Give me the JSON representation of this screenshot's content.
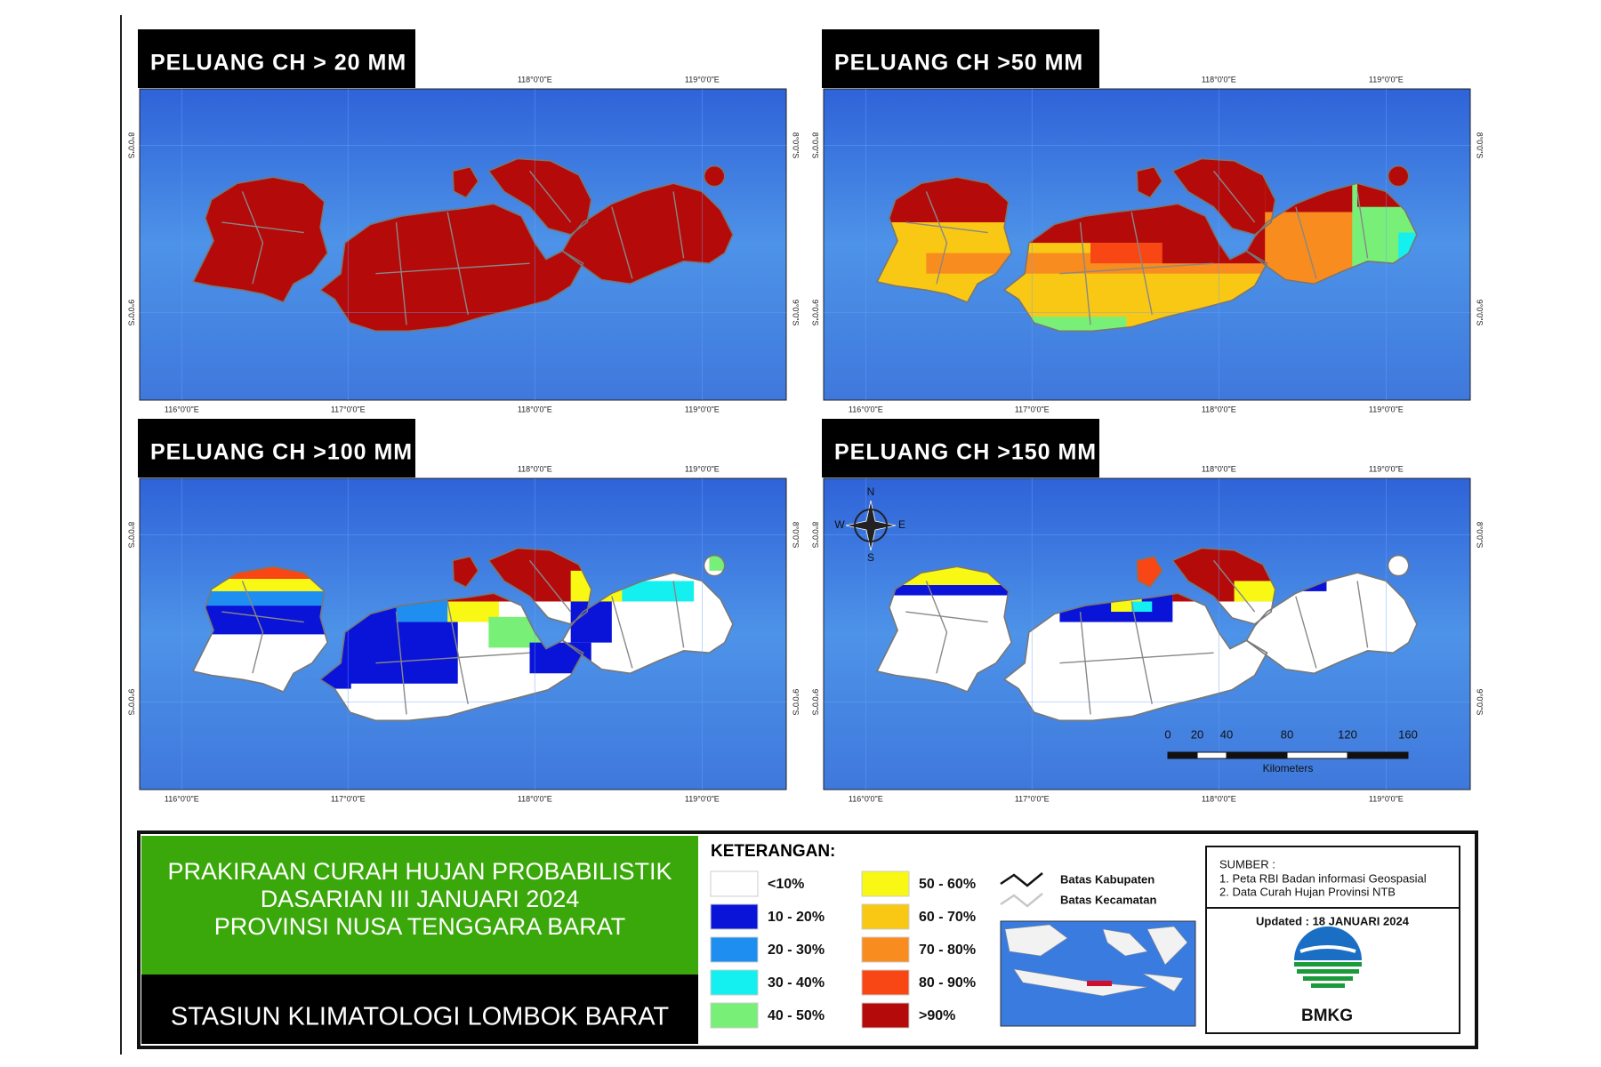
{
  "panels": [
    {
      "title": "PELUANG CH > 20 MM"
    },
    {
      "title": "PELUANG CH >50 MM"
    },
    {
      "title": "PELUANG CH >100 MM"
    },
    {
      "title": "PELUANG CH >150 MM"
    }
  ],
  "axis_labels": {
    "lon": [
      "116°0'0\"E",
      "117°0'0\"E",
      "118°0'0\"E",
      "119°0'0\"E"
    ],
    "lat": [
      "8°0'0\"S",
      "9°0'0\"S"
    ]
  },
  "compass": {
    "n": "N",
    "e": "E",
    "s": "S",
    "w": "W"
  },
  "scale_bar": {
    "ticks": [
      "0",
      "20",
      "40",
      "80",
      "120",
      "160"
    ],
    "unit": "Kilometers"
  },
  "title_block": {
    "lines": [
      "PRAKIRAAN CURAH HUJAN PROBABILISTIK",
      "DASARIAN  III JANUARI 2024",
      "PROVINSI NUSA TENGGARA BARAT"
    ],
    "station": "STASIUN KLIMATOLOGI LOMBOK BARAT"
  },
  "legend": {
    "title": "KETERANGAN:",
    "classes": [
      {
        "label": "<10%",
        "color": "#ffffff"
      },
      {
        "label": "10 - 20%",
        "color": "#0a14d8"
      },
      {
        "label": "20 - 30%",
        "color": "#1e8ef0"
      },
      {
        "label": "30 - 40%",
        "color": "#14f0f0"
      },
      {
        "label": "40 - 50%",
        "color": "#78f078"
      },
      {
        "label": "50 - 60%",
        "color": "#f8f814"
      },
      {
        "label": "60 - 70%",
        "color": "#f8c814"
      },
      {
        "label": "70 - 80%",
        "color": "#f88c1e"
      },
      {
        "label": "80 - 90%",
        "color": "#f84614"
      },
      {
        "label": ">90%",
        "color": "#b40a0a"
      }
    ],
    "lines": [
      {
        "label": "Batas Kabupaten",
        "color": "#111111"
      },
      {
        "label": "Batas Kecamatan",
        "color": "#c8c8c8"
      }
    ]
  },
  "sources": {
    "heading": "SUMBER :",
    "items": [
      "1. Peta RBI Badan informasi Geospasial",
      "2. Data Curah Hujan Provinsi NTB"
    ]
  },
  "updated": "Updated : 18 JANUARI 2024",
  "logo": "BMKG"
}
